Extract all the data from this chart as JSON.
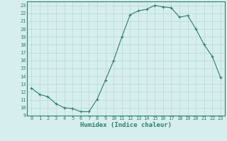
{
  "x": [
    0,
    1,
    2,
    3,
    4,
    5,
    6,
    7,
    8,
    9,
    10,
    11,
    12,
    13,
    14,
    15,
    16,
    17,
    18,
    19,
    20,
    21,
    22,
    23
  ],
  "y": [
    12.5,
    11.7,
    11.4,
    10.5,
    10.0,
    9.9,
    9.5,
    9.5,
    11.1,
    13.5,
    16.0,
    19.0,
    21.8,
    22.3,
    22.5,
    23.0,
    22.8,
    22.7,
    21.5,
    21.7,
    20.0,
    18.0,
    16.5,
    13.8
  ],
  "xlabel": "Humidex (Indice chaleur)",
  "bg_color": "#d6eeee",
  "line_color": "#2e7d6e",
  "marker_color": "#2e7d6e",
  "grid_color": "#b8d8d8",
  "ylim": [
    9,
    23.5
  ],
  "xlim": [
    -0.5,
    23.5
  ],
  "yticks": [
    9,
    10,
    11,
    12,
    13,
    14,
    15,
    16,
    17,
    18,
    19,
    20,
    21,
    22,
    23
  ],
  "xticks": [
    0,
    1,
    2,
    3,
    4,
    5,
    6,
    7,
    8,
    9,
    10,
    11,
    12,
    13,
    14,
    15,
    16,
    17,
    18,
    19,
    20,
    21,
    22,
    23
  ],
  "tick_fontsize": 5.0,
  "xlabel_fontsize": 6.5
}
